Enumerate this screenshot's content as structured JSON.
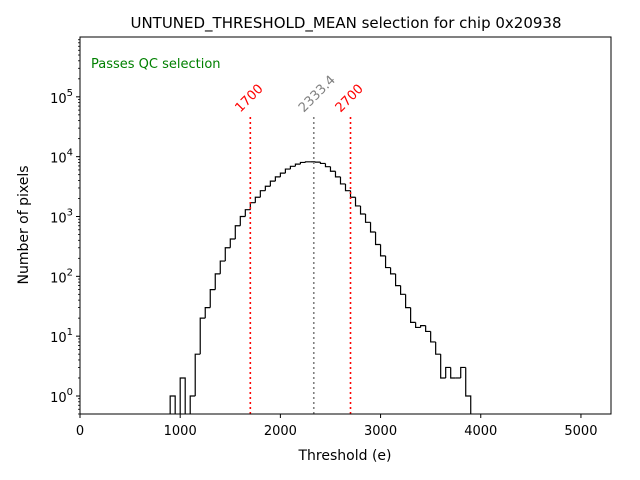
{
  "chart_data": {
    "type": "histogram",
    "title": "UNTUNED_THRESHOLD_MEAN selection for chip 0x20938",
    "xlabel": "Threshold (e)",
    "ylabel": "Number of pixels",
    "xlim": [
      0,
      5300
    ],
    "ylim": [
      0.5,
      1000000
    ],
    "yscale": "log",
    "x_ticks": [
      {
        "value": 0,
        "label": "0"
      },
      {
        "value": 1000,
        "label": "1000"
      },
      {
        "value": 2000,
        "label": "2000"
      },
      {
        "value": 3000,
        "label": "3000"
      },
      {
        "value": 4000,
        "label": "4000"
      },
      {
        "value": 5000,
        "label": "5000"
      }
    ],
    "y_ticks": [
      {
        "value": 1,
        "base": "10",
        "exp": "0"
      },
      {
        "value": 10,
        "base": "10",
        "exp": "1"
      },
      {
        "value": 100,
        "base": "10",
        "exp": "2"
      },
      {
        "value": 1000,
        "base": "10",
        "exp": "3"
      },
      {
        "value": 10000,
        "base": "10",
        "exp": "4"
      },
      {
        "value": 100000,
        "base": "10",
        "exp": "5"
      }
    ],
    "bin_width": 50,
    "bins_start": 900,
    "counts": [
      1,
      0,
      2,
      0,
      1,
      5,
      20,
      30,
      60,
      110,
      180,
      300,
      420,
      700,
      1000,
      1300,
      1700,
      2100,
      2700,
      3200,
      3900,
      4600,
      5300,
      6200,
      6900,
      7500,
      8000,
      8200,
      8200,
      8100,
      7700,
      6800,
      5700,
      4600,
      3500,
      2700,
      2100,
      1500,
      1100,
      800,
      550,
      340,
      220,
      140,
      110,
      70,
      50,
      30,
      17,
      14,
      15,
      12,
      8,
      5,
      2,
      3,
      2,
      2,
      3,
      1
    ],
    "threshold_lines": [
      {
        "value": 1700,
        "label": "1700",
        "color": "#ff0000"
      },
      {
        "value": 2333.4,
        "label": "2333.4",
        "color": "#808080"
      },
      {
        "value": 2700,
        "label": "2700",
        "color": "#ff0000"
      }
    ],
    "annotation": {
      "text": "Passes QC selection",
      "color": "#008000"
    },
    "line_color": "#000000"
  }
}
